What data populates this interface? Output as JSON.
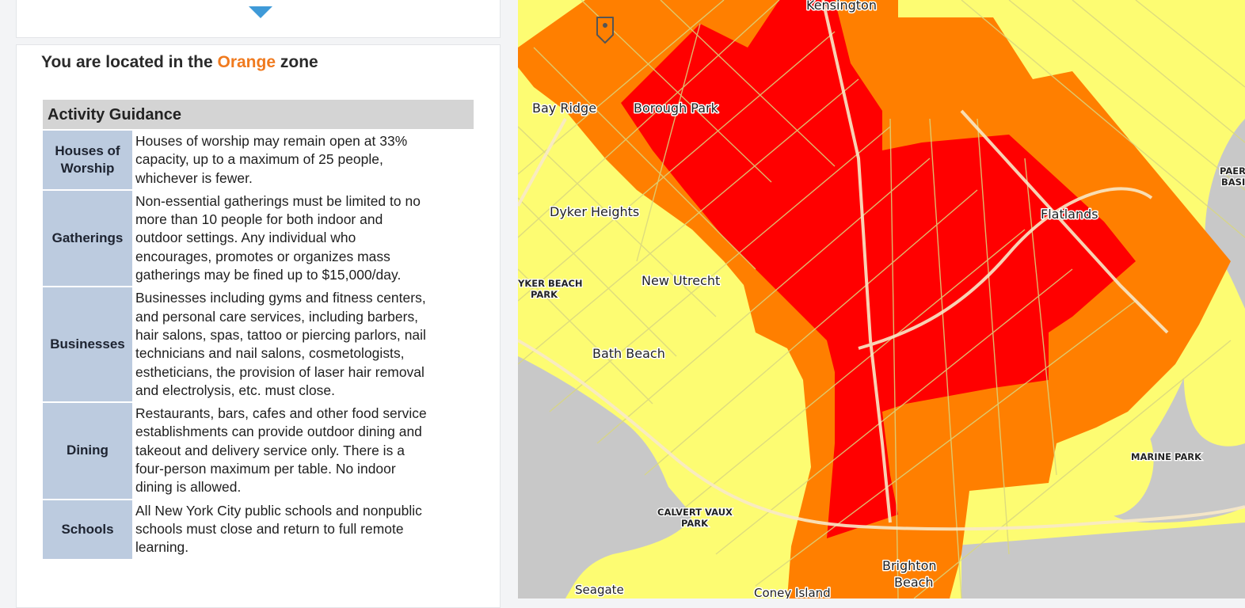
{
  "zone_heading": {
    "prefix": "You are located in the",
    "zone": "Orange",
    "suffix": "zone"
  },
  "colors": {
    "zone_orange_text": "#f07a1e",
    "arrow_blue": "#3f9ad8",
    "category_bg": "#bccbdf",
    "header_bg": "#d4d4d4",
    "map_red": "#ff0000",
    "map_orange": "#ff7f00",
    "map_yellow": "#fdfc72",
    "map_water": "#c8c8c8"
  },
  "icons": {
    "collapse": "triangle-down",
    "map_marker": "map-pin"
  },
  "guidance": {
    "title": "Activity Guidance",
    "rows": [
      {
        "category_lines": [
          "Houses of",
          "Worship"
        ],
        "lines": [
          "Houses of worship may remain open at 33%",
          "capacity, up to a maximum of 25 people,",
          "whichever is fewer."
        ]
      },
      {
        "category_lines": [
          "Gatherings"
        ],
        "lines": [
          "Non-essential gatherings must be limited to no",
          "more than 10 people for both indoor and",
          "outdoor settings. Any individual who",
          "encourages, promotes or organizes mass",
          "gatherings may be fined up to $15,000/day."
        ]
      },
      {
        "category_lines": [
          "Businesses"
        ],
        "lines": [
          "Businesses including gyms and fitness centers,",
          "and personal care services, including barbers,",
          "hair salons, spas, tattoo or piercing parlors, nail",
          "technicians and nail salons, cosmetologists,",
          "estheticians, the provision of laser hair removal",
          "and electrolysis, etc. must close."
        ]
      },
      {
        "category_lines": [
          "Dining"
        ],
        "lines": [
          "Restaurants, bars, cafes and other food service",
          "establishments can provide outdoor dining and",
          "takeout and delivery service only. There is a",
          "four-person maximum per table. No indoor",
          "dining is allowed."
        ]
      },
      {
        "category_lines": [
          "Schools"
        ],
        "lines": [
          "All New York City public schools and nonpublic",
          "schools must close and return to full remote",
          "learning."
        ]
      }
    ]
  },
  "map": {
    "labels": {
      "kensington": "Kensington",
      "bay_ridge": "Bay Ridge",
      "borough_park": "Borough Park",
      "dyker_heights": "Dyker Heights",
      "flatlands": "Flatlands",
      "dyker_beach_park": [
        "YKER BEACH",
        "PARK"
      ],
      "new_utrecht": "New Utrecht",
      "bath_beach": "Bath Beach",
      "marine_park": "MARINE PARK",
      "calvert_vaux_park": [
        "CALVERT VAUX",
        "PARK"
      ],
      "brighton_beach": [
        "Brighton",
        "Beach"
      ],
      "seagate": "Seagate",
      "coney_island": "Coney Island",
      "paerdegat_basin": [
        "PAER",
        "BASI"
      ]
    }
  }
}
